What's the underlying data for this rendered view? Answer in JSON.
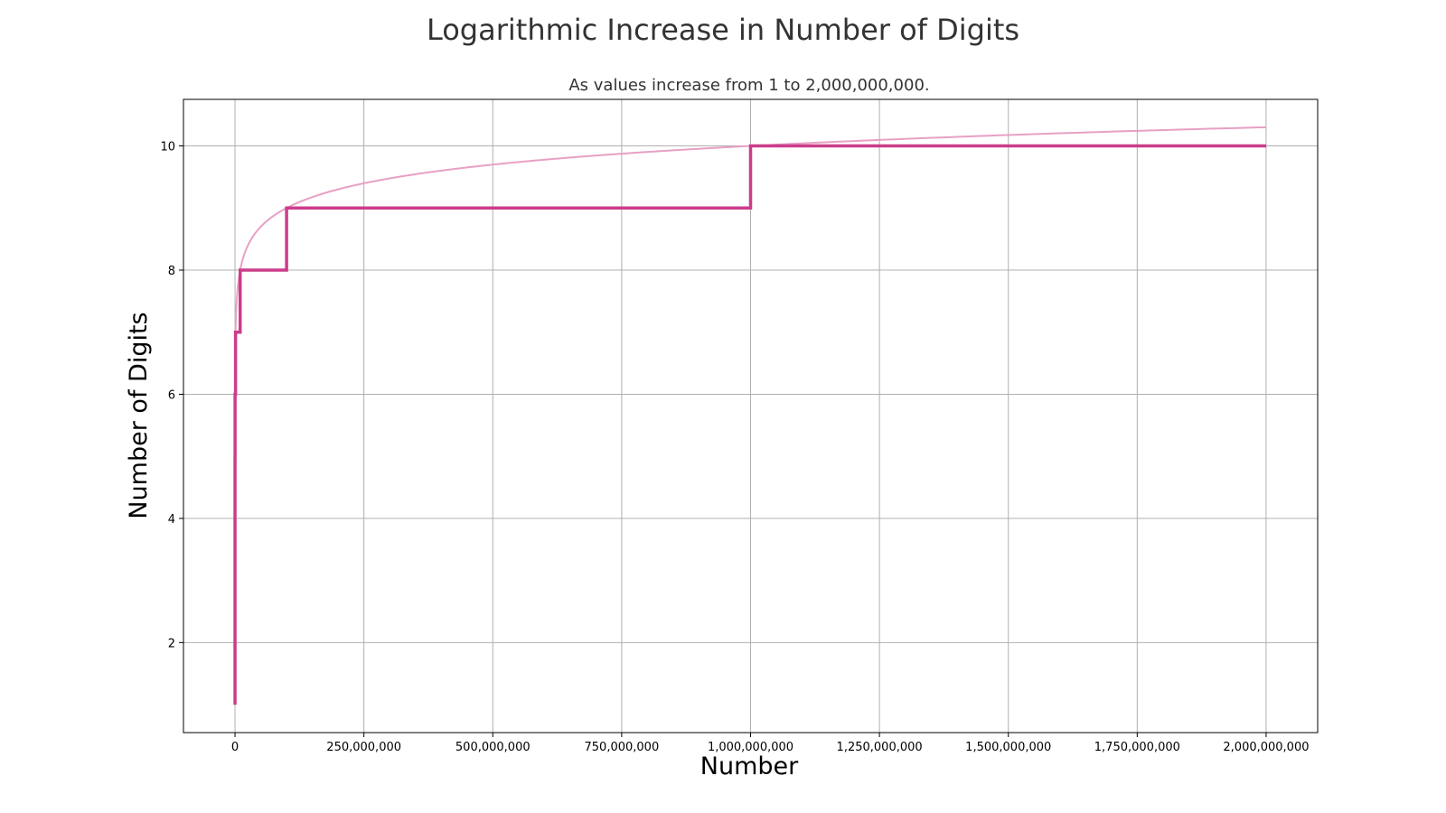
{
  "chart_data": {
    "type": "line",
    "title": "Logarithmic Increase in Number of Digits",
    "subtitle": "As values increase from 1 to 2,000,000,000.",
    "xlabel": "Number",
    "ylabel": "Number of Digits",
    "xlim": [
      -100000000,
      2100000000
    ],
    "ylim": [
      0.55,
      10.75
    ],
    "grid": true,
    "x_ticks": [
      0,
      250000000,
      500000000,
      750000000,
      1000000000,
      1250000000,
      1500000000,
      1750000000,
      2000000000
    ],
    "x_tick_labels": [
      "0",
      "250,000,000",
      "500,000,000",
      "750,000,000",
      "1,000,000,000",
      "1,250,000,000",
      "1,500,000,000",
      "1,750,000,000",
      "2,000,000,000"
    ],
    "y_ticks": [
      2,
      4,
      6,
      8,
      10
    ],
    "y_tick_labels": [
      "2",
      "4",
      "6",
      "8",
      "10"
    ],
    "series": [
      {
        "style": "step",
        "color": "#cc3d8a",
        "x": [
          1,
          10,
          100,
          1000,
          10000,
          100000,
          1000000,
          10000000,
          100000000,
          1000000000,
          2000000000
        ],
        "y": [
          1,
          2,
          3,
          4,
          5,
          6,
          7,
          8,
          9,
          10,
          10
        ]
      },
      {
        "style": "smooth",
        "function": "log10(x) + 1",
        "color": "#e8a0c4",
        "x_range": [
          1,
          2000000000
        ]
      }
    ]
  }
}
